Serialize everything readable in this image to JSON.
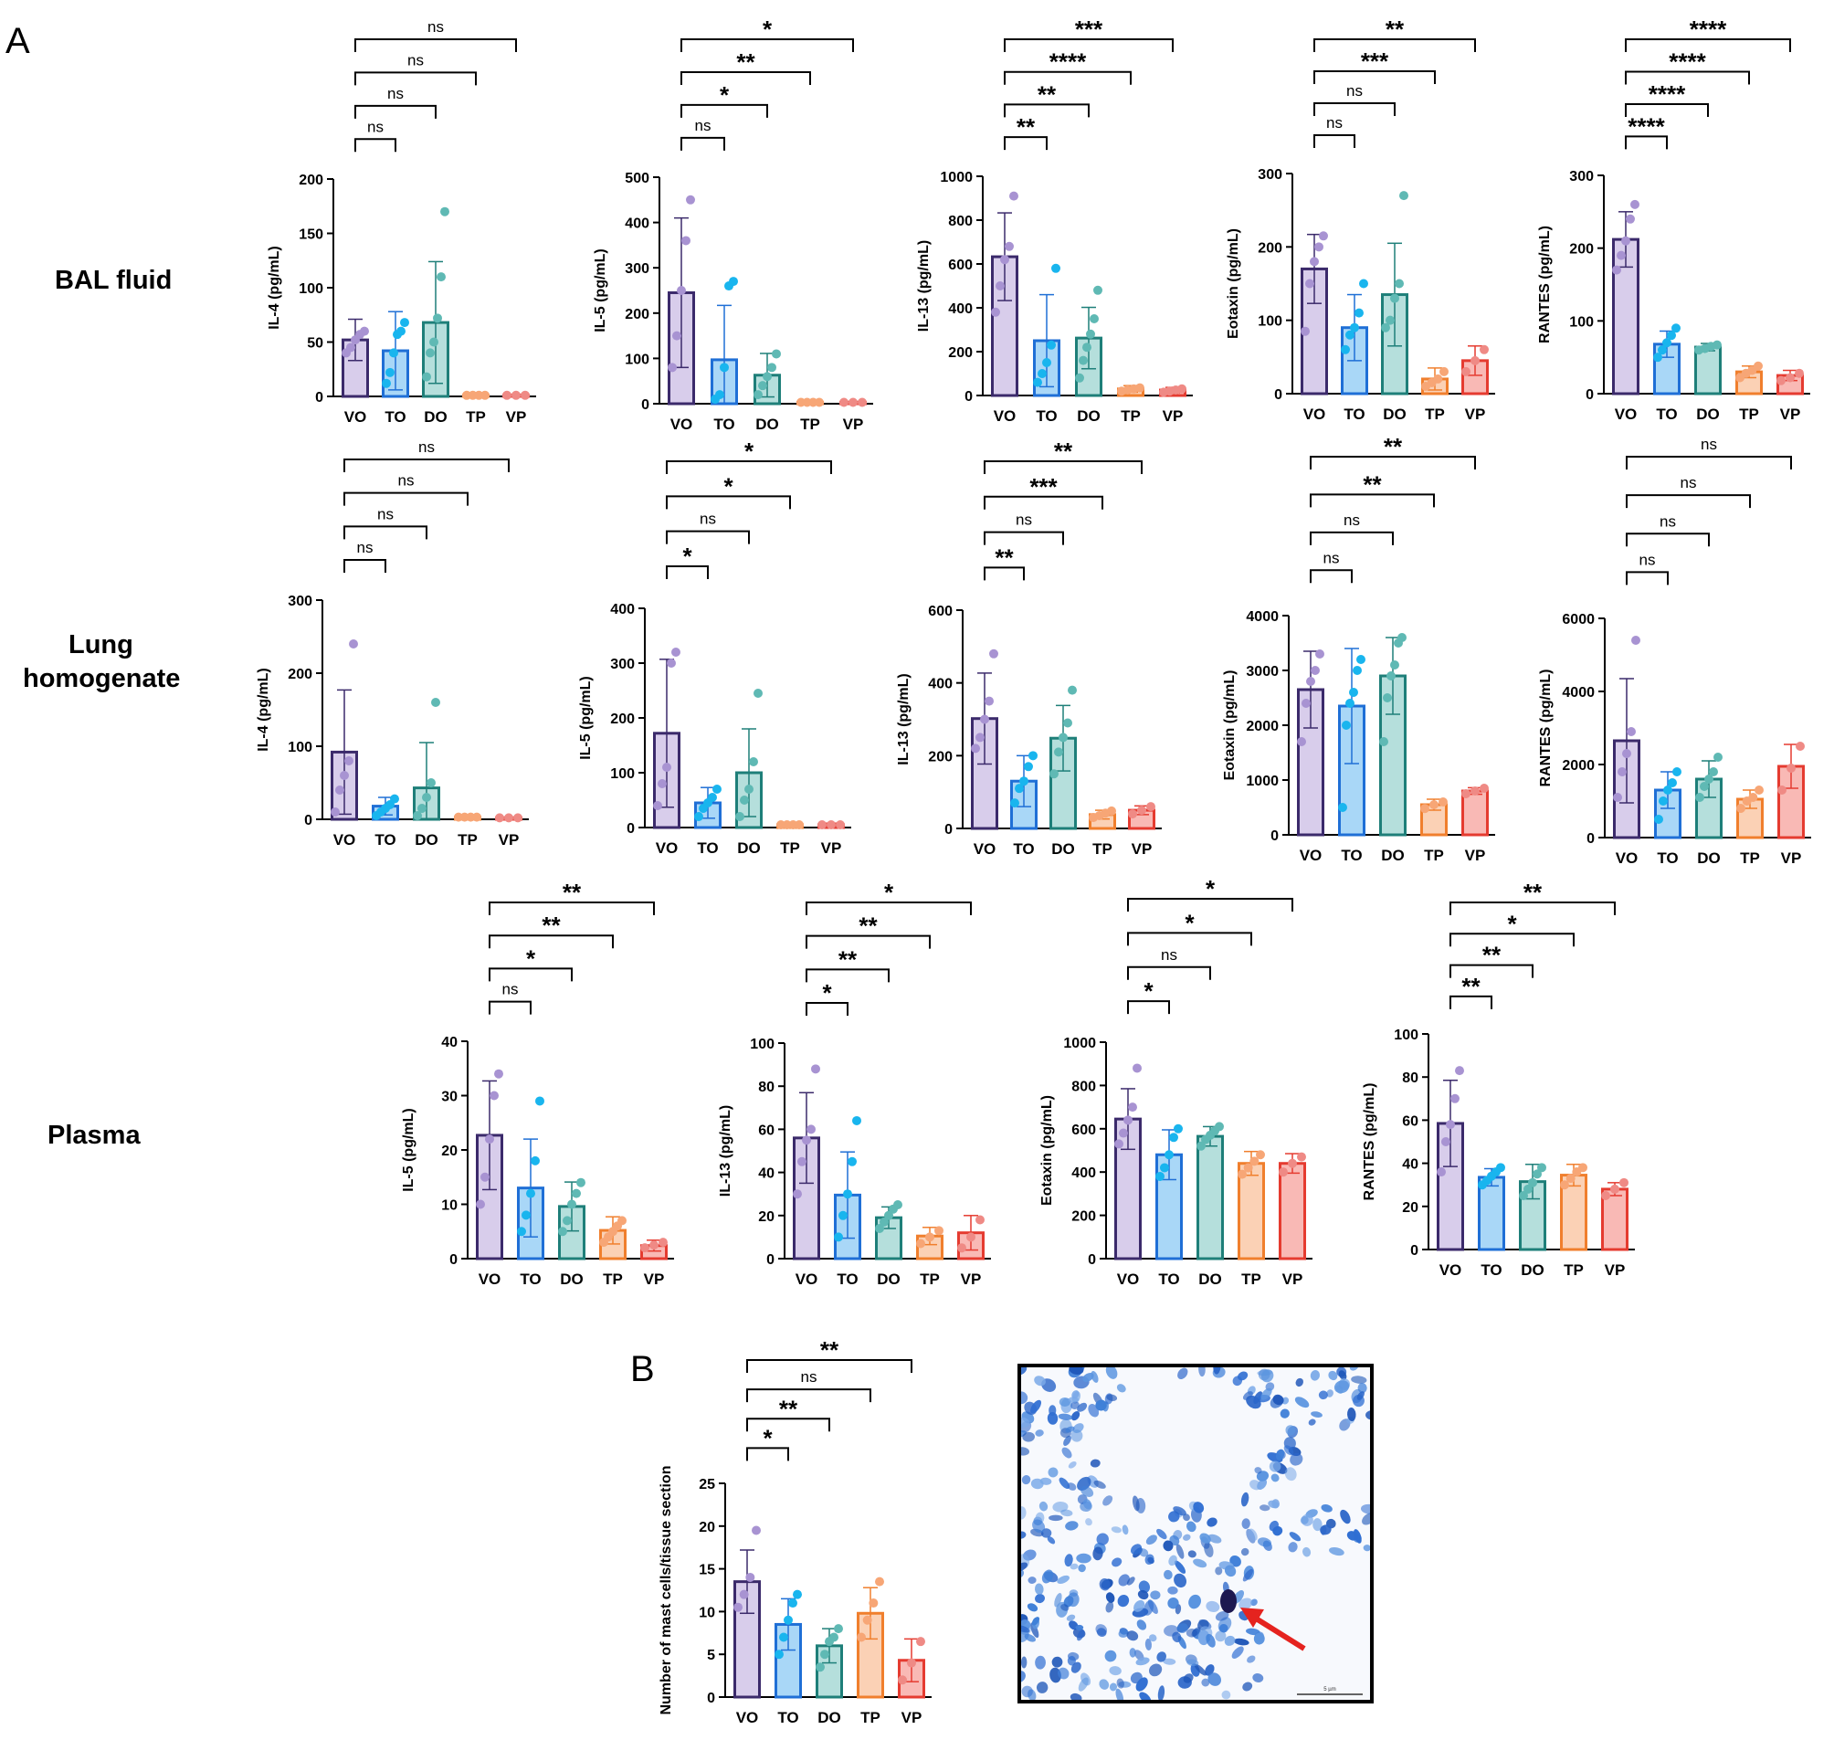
{
  "labels": {
    "panel_a": "A",
    "panel_b": "B",
    "row_bal": "BAL fluid",
    "row_lung_1": "Lung",
    "row_lung_2": "homogenate",
    "row_plasma": "Plasma"
  },
  "colors": {
    "VO": {
      "fill": "#d8cdeb",
      "edge": "#3b2a6b",
      "dot": "#a893d2"
    },
    "TO": {
      "fill": "#a9d7f7",
      "edge": "#1f6fd6",
      "dot": "#19b5ee"
    },
    "DO": {
      "fill": "#b5dfdc",
      "edge": "#1e7f79",
      "dot": "#5fb9b4"
    },
    "TP": {
      "fill": "#fbd1b5",
      "edge": "#f07f2d",
      "dot": "#f7a676"
    },
    "VP": {
      "fill": "#f9b9b5",
      "edge": "#e53b30",
      "dot": "#ef8a85"
    }
  },
  "micrograph": {
    "scale_label": "5 µm",
    "description_icon": "red-arrow-icon"
  },
  "chart_data": [
    {
      "id": "bal-il4",
      "type": "bar",
      "row": "BAL fluid",
      "ylabel": "IL-4 (pg/mL)",
      "ylim": [
        0,
        200
      ],
      "yticks": [
        0,
        50,
        100,
        150,
        200
      ],
      "categories": [
        "VO",
        "TO",
        "DO",
        "TP",
        "VP"
      ],
      "values": [
        52,
        42,
        68,
        1,
        1
      ],
      "errors": [
        19,
        36,
        56,
        1,
        1
      ],
      "points": [
        [
          40,
          45,
          52,
          57,
          60
        ],
        [
          12,
          22,
          40,
          57,
          60,
          68
        ],
        [
          18,
          40,
          50,
          72,
          110,
          170
        ],
        [
          1,
          1,
          1,
          1
        ],
        [
          1,
          1,
          1
        ]
      ],
      "sig": [
        {
          "to": "TO",
          "label": "ns"
        },
        {
          "to": "DO",
          "label": "ns"
        },
        {
          "to": "TP",
          "label": "ns"
        },
        {
          "to": "VP",
          "label": "ns"
        }
      ]
    },
    {
      "id": "bal-il5",
      "type": "bar",
      "row": "BAL fluid",
      "ylabel": "IL-5 (pg/mL)",
      "ylim": [
        0,
        500
      ],
      "yticks": [
        0,
        100,
        200,
        300,
        400,
        500
      ],
      "categories": [
        "VO",
        "TO",
        "DO",
        "TP",
        "VP"
      ],
      "values": [
        245,
        97,
        63,
        3,
        3
      ],
      "errors": [
        165,
        120,
        48,
        2,
        2
      ],
      "points": [
        [
          80,
          150,
          250,
          360,
          450
        ],
        [
          10,
          20,
          80,
          260,
          270
        ],
        [
          20,
          40,
          60,
          80,
          110
        ],
        [
          3,
          3,
          3,
          3
        ],
        [
          3,
          3,
          3
        ]
      ],
      "sig": [
        {
          "to": "TO",
          "label": "ns"
        },
        {
          "to": "DO",
          "label": "*"
        },
        {
          "to": "TP",
          "label": "**"
        },
        {
          "to": "VP",
          "label": "*"
        }
      ]
    },
    {
      "id": "bal-il13",
      "type": "bar",
      "row": "BAL fluid",
      "ylabel": "IL-13 (pg/mL)",
      "ylim": [
        0,
        1000
      ],
      "yticks": [
        0,
        200,
        400,
        600,
        800,
        1000
      ],
      "categories": [
        "VO",
        "TO",
        "DO",
        "TP",
        "VP"
      ],
      "values": [
        633,
        250,
        262,
        30,
        25
      ],
      "errors": [
        200,
        210,
        140,
        15,
        12
      ],
      "points": [
        [
          380,
          500,
          620,
          680,
          910
        ],
        [
          60,
          100,
          150,
          230,
          580
        ],
        [
          80,
          160,
          220,
          280,
          350,
          480
        ],
        [
          20,
          25,
          30,
          35
        ],
        [
          15,
          20,
          25,
          30
        ]
      ],
      "sig": [
        {
          "to": "TO",
          "label": "**"
        },
        {
          "to": "DO",
          "label": "**"
        },
        {
          "to": "TP",
          "label": "****"
        },
        {
          "to": "VP",
          "label": "***"
        }
      ]
    },
    {
      "id": "bal-eotaxin",
      "type": "bar",
      "row": "BAL fluid",
      "ylabel": "Eotaxin (pg/mL)",
      "ylim": [
        0,
        300
      ],
      "yticks": [
        0,
        100,
        200,
        300
      ],
      "categories": [
        "VO",
        "TO",
        "DO",
        "TP",
        "VP"
      ],
      "values": [
        170,
        90,
        135,
        20,
        45
      ],
      "errors": [
        47,
        45,
        70,
        15,
        20
      ],
      "points": [
        [
          85,
          150,
          180,
          200,
          215
        ],
        [
          60,
          80,
          90,
          110,
          150
        ],
        [
          90,
          100,
          130,
          150,
          270
        ],
        [
          10,
          15,
          20,
          30
        ],
        [
          30,
          45,
          60
        ]
      ],
      "sig": [
        {
          "to": "TO",
          "label": "ns"
        },
        {
          "to": "DO",
          "label": "ns"
        },
        {
          "to": "TP",
          "label": "***"
        },
        {
          "to": "VP",
          "label": "**"
        }
      ]
    },
    {
      "id": "bal-rantes",
      "type": "bar",
      "row": "BAL fluid",
      "ylabel": "RANTES (pg/mL)",
      "ylim": [
        0,
        300
      ],
      "yticks": [
        0,
        100,
        200,
        300
      ],
      "categories": [
        "VO",
        "TO",
        "DO",
        "TP",
        "VP"
      ],
      "values": [
        212,
        68,
        64,
        30,
        25
      ],
      "errors": [
        38,
        18,
        5,
        8,
        7
      ],
      "points": [
        [
          170,
          190,
          210,
          240,
          260
        ],
        [
          50,
          60,
          70,
          80,
          90
        ],
        [
          60,
          62,
          65,
          67
        ],
        [
          22,
          28,
          32,
          38
        ],
        [
          18,
          22,
          28
        ]
      ],
      "sig": [
        {
          "to": "TO",
          "label": "****"
        },
        {
          "to": "DO",
          "label": "****"
        },
        {
          "to": "TP",
          "label": "****"
        },
        {
          "to": "VP",
          "label": "****"
        }
      ]
    },
    {
      "id": "lung-il4",
      "type": "bar",
      "row": "Lung homogenate",
      "ylabel": "IL-4 (pg/mL)",
      "ylim": [
        0,
        300
      ],
      "yticks": [
        0,
        100,
        200,
        300
      ],
      "categories": [
        "VO",
        "TO",
        "DO",
        "TP",
        "VP"
      ],
      "values": [
        92,
        18,
        43,
        3,
        2
      ],
      "errors": [
        85,
        12,
        62,
        2,
        1
      ],
      "points": [
        [
          10,
          40,
          60,
          80,
          240
        ],
        [
          5,
          10,
          15,
          20,
          28
        ],
        [
          5,
          15,
          30,
          50,
          160
        ],
        [
          3,
          3,
          3,
          3
        ],
        [
          2,
          2,
          2
        ]
      ],
      "sig": [
        {
          "to": "TO",
          "label": "ns"
        },
        {
          "to": "DO",
          "label": "ns"
        },
        {
          "to": "TP",
          "label": "ns"
        },
        {
          "to": "VP",
          "label": "ns"
        }
      ]
    },
    {
      "id": "lung-il5",
      "type": "bar",
      "row": "Lung homogenate",
      "ylabel": "IL-5 (pg/mL)",
      "ylim": [
        0,
        400
      ],
      "yticks": [
        0,
        100,
        200,
        300,
        400
      ],
      "categories": [
        "VO",
        "TO",
        "DO",
        "TP",
        "VP"
      ],
      "values": [
        172,
        45,
        100,
        5,
        5
      ],
      "errors": [
        135,
        28,
        80,
        3,
        3
      ],
      "points": [
        [
          40,
          80,
          110,
          300,
          320
        ],
        [
          20,
          35,
          45,
          55,
          70
        ],
        [
          20,
          50,
          70,
          120,
          245
        ],
        [
          5,
          5,
          5,
          5
        ],
        [
          5,
          5,
          5
        ]
      ],
      "sig": [
        {
          "to": "TO",
          "label": "*"
        },
        {
          "to": "DO",
          "label": "ns"
        },
        {
          "to": "TP",
          "label": "*"
        },
        {
          "to": "VP",
          "label": "*"
        }
      ]
    },
    {
      "id": "lung-il13",
      "type": "bar",
      "row": "Lung homogenate",
      "ylabel": "IL-13 (pg/mL)",
      "ylim": [
        0,
        600
      ],
      "yticks": [
        0,
        200,
        400,
        600
      ],
      "categories": [
        "VO",
        "TO",
        "DO",
        "TP",
        "VP"
      ],
      "values": [
        302,
        130,
        248,
        38,
        50
      ],
      "errors": [
        125,
        70,
        90,
        12,
        12
      ],
      "points": [
        [
          220,
          250,
          300,
          350,
          480
        ],
        [
          70,
          110,
          130,
          170,
          200
        ],
        [
          150,
          210,
          250,
          290,
          380
        ],
        [
          30,
          35,
          42,
          48
        ],
        [
          40,
          50,
          60
        ]
      ],
      "sig": [
        {
          "to": "TO",
          "label": "**"
        },
        {
          "to": "DO",
          "label": "ns"
        },
        {
          "to": "TP",
          "label": "***"
        },
        {
          "to": "VP",
          "label": "**"
        }
      ]
    },
    {
      "id": "lung-eotaxin",
      "type": "bar",
      "row": "Lung homogenate",
      "ylabel": "Eotaxin (pg/mL)",
      "ylim": [
        0,
        4000
      ],
      "yticks": [
        0,
        1000,
        2000,
        3000,
        4000
      ],
      "categories": [
        "VO",
        "TO",
        "DO",
        "TP",
        "VP"
      ],
      "values": [
        2650,
        2350,
        2900,
        550,
        800
      ],
      "errors": [
        700,
        1050,
        700,
        100,
        60
      ],
      "points": [
        [
          1700,
          2400,
          2800,
          3000,
          3300
        ],
        [
          500,
          2000,
          2400,
          2600,
          3000,
          3200
        ],
        [
          1700,
          2500,
          2900,
          3100,
          3500,
          3600
        ],
        [
          480,
          550,
          600
        ],
        [
          750,
          800,
          850
        ]
      ],
      "sig": [
        {
          "to": "TO",
          "label": "ns"
        },
        {
          "to": "DO",
          "label": "ns"
        },
        {
          "to": "TP",
          "label": "**"
        },
        {
          "to": "VP",
          "label": "**"
        }
      ]
    },
    {
      "id": "lung-rantes",
      "type": "bar",
      "row": "Lung homogenate",
      "ylabel": "RANTES (pg/mL)",
      "ylim": [
        0,
        6000
      ],
      "yticks": [
        0,
        2000,
        4000,
        6000
      ],
      "categories": [
        "VO",
        "TO",
        "DO",
        "TP",
        "VP"
      ],
      "values": [
        2650,
        1300,
        1600,
        1050,
        1950
      ],
      "errors": [
        1700,
        500,
        500,
        250,
        600
      ],
      "points": [
        [
          1100,
          1800,
          2300,
          2900,
          5400
        ],
        [
          500,
          1000,
          1300,
          1500,
          1800
        ],
        [
          1100,
          1400,
          1600,
          1800,
          2200
        ],
        [
          800,
          1000,
          1100,
          1300
        ],
        [
          1300,
          1900,
          2500
        ]
      ],
      "sig": [
        {
          "to": "TO",
          "label": "ns"
        },
        {
          "to": "DO",
          "label": "ns"
        },
        {
          "to": "TP",
          "label": "ns"
        },
        {
          "to": "VP",
          "label": "ns"
        }
      ]
    },
    {
      "id": "pl-il5",
      "type": "bar",
      "row": "Plasma",
      "ylabel": "IL-5 (pg/mL)",
      "ylim": [
        0,
        40
      ],
      "yticks": [
        0,
        10,
        20,
        30,
        40
      ],
      "categories": [
        "VO",
        "TO",
        "DO",
        "TP",
        "VP"
      ],
      "values": [
        22.7,
        13,
        9.6,
        5.2,
        2.4
      ],
      "errors": [
        10,
        9,
        4.5,
        2.5,
        1
      ],
      "points": [
        [
          10,
          15,
          22,
          30,
          34
        ],
        [
          5,
          8,
          12,
          18,
          29
        ],
        [
          5,
          7,
          10,
          12,
          14
        ],
        [
          3,
          4,
          5,
          6,
          7
        ],
        [
          2,
          2.5,
          3
        ]
      ],
      "sig": [
        {
          "to": "TO",
          "label": "ns"
        },
        {
          "to": "DO",
          "label": "*"
        },
        {
          "to": "TP",
          "label": "**"
        },
        {
          "to": "VP",
          "label": "**"
        }
      ]
    },
    {
      "id": "pl-il13",
      "type": "bar",
      "row": "Plasma",
      "ylabel": "IL-13 (pg/mL)",
      "ylim": [
        0,
        100
      ],
      "yticks": [
        0,
        20,
        40,
        60,
        80,
        100
      ],
      "categories": [
        "VO",
        "TO",
        "DO",
        "TP",
        "VP"
      ],
      "values": [
        56,
        29.5,
        19,
        10.5,
        12
      ],
      "errors": [
        21,
        20,
        5,
        4,
        8
      ],
      "points": [
        [
          30,
          45,
          55,
          60,
          88
        ],
        [
          10,
          20,
          30,
          45,
          64
        ],
        [
          14,
          17,
          20,
          23,
          25
        ],
        [
          7,
          10,
          13
        ],
        [
          5,
          10,
          18
        ]
      ],
      "sig": [
        {
          "to": "TO",
          "label": "*"
        },
        {
          "to": "DO",
          "label": "**"
        },
        {
          "to": "TP",
          "label": "**"
        },
        {
          "to": "VP",
          "label": "*"
        }
      ]
    },
    {
      "id": "pl-eotaxin",
      "type": "bar",
      "row": "Plasma",
      "ylabel": "Eotaxin (pg/mL)",
      "ylim": [
        0,
        1000
      ],
      "yticks": [
        0,
        200,
        400,
        600,
        800,
        1000
      ],
      "categories": [
        "VO",
        "TO",
        "DO",
        "TP",
        "VP"
      ],
      "values": [
        645,
        480,
        565,
        440,
        440
      ],
      "errors": [
        140,
        115,
        45,
        55,
        45
      ],
      "points": [
        [
          530,
          580,
          640,
          700,
          880
        ],
        [
          380,
          420,
          480,
          560,
          600
        ],
        [
          520,
          550,
          570,
          590,
          610
        ],
        [
          390,
          420,
          450,
          480
        ],
        [
          400,
          440,
          470
        ]
      ],
      "sig": [
        {
          "to": "TO",
          "label": "*"
        },
        {
          "to": "DO",
          "label": "ns"
        },
        {
          "to": "TP",
          "label": "*"
        },
        {
          "to": "VP",
          "label": "*"
        }
      ]
    },
    {
      "id": "pl-rantes",
      "type": "bar",
      "row": "Plasma",
      "ylabel": "RANTES (pg/mL)",
      "ylim": [
        0,
        100
      ],
      "yticks": [
        0,
        20,
        40,
        60,
        80,
        100
      ],
      "categories": [
        "VO",
        "TO",
        "DO",
        "TP",
        "VP"
      ],
      "values": [
        58.5,
        33.5,
        31.5,
        34.5,
        28
      ],
      "errors": [
        20,
        4,
        8,
        5,
        3
      ],
      "points": [
        [
          36,
          50,
          58,
          70,
          83
        ],
        [
          30,
          32,
          34,
          36,
          38
        ],
        [
          25,
          28,
          31,
          35,
          38
        ],
        [
          30,
          33,
          36,
          38
        ],
        [
          25,
          28,
          31
        ]
      ],
      "sig": [
        {
          "to": "TO",
          "label": "**"
        },
        {
          "to": "DO",
          "label": "**"
        },
        {
          "to": "TP",
          "label": "*"
        },
        {
          "to": "VP",
          "label": "**"
        }
      ]
    },
    {
      "id": "mast",
      "type": "bar",
      "row": "B",
      "ylabel": "Number of mast cells/tissue section",
      "ylim": [
        0,
        25
      ],
      "yticks": [
        0,
        5,
        10,
        15,
        20,
        25
      ],
      "categories": [
        "VO",
        "TO",
        "DO",
        "TP",
        "VP"
      ],
      "values": [
        13.5,
        8.5,
        6,
        9.8,
        4.3
      ],
      "errors": [
        3.7,
        3,
        2,
        3,
        2.5
      ],
      "points": [
        [
          10.5,
          12,
          14,
          19.5
        ],
        [
          5,
          7,
          9,
          11,
          12
        ],
        [
          3.5,
          5,
          6.5,
          7,
          8
        ],
        [
          7,
          9,
          11,
          13.5
        ],
        [
          2,
          4,
          6.5
        ]
      ],
      "sig": [
        {
          "to": "TO",
          "label": "*"
        },
        {
          "to": "DO",
          "label": "**"
        },
        {
          "to": "TP",
          "label": "ns"
        },
        {
          "to": "VP",
          "label": "**"
        }
      ]
    }
  ]
}
